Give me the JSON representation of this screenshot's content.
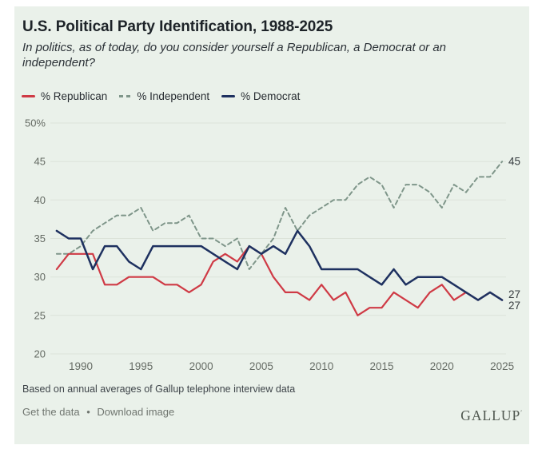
{
  "header": {
    "title": "U.S. Political Party Identification, 1988-2025",
    "subtitle": "In politics, as of today, do you consider yourself a Republican, a Democrat or an independent?"
  },
  "legend": {
    "items": [
      {
        "label": "% Republican",
        "color": "#cf3a45",
        "style": "solid"
      },
      {
        "label": "% Independent",
        "color": "#7f968a",
        "style": "dashed"
      },
      {
        "label": "% Democrat",
        "color": "#1e3160",
        "style": "solid"
      }
    ]
  },
  "chart_data": {
    "type": "line",
    "title": "U.S. Political Party Identification, 1988-2025",
    "x": [
      1988,
      1989,
      1990,
      1991,
      1992,
      1993,
      1994,
      1995,
      1996,
      1997,
      1998,
      1999,
      2000,
      2001,
      2002,
      2003,
      2004,
      2005,
      2006,
      2007,
      2008,
      2009,
      2010,
      2011,
      2012,
      2013,
      2014,
      2015,
      2016,
      2017,
      2018,
      2019,
      2020,
      2021,
      2022,
      2023,
      2024,
      2025
    ],
    "series": [
      {
        "name": "% Republican",
        "slug": "republican",
        "color": "#cf3a45",
        "dash": null,
        "values": [
          31,
          33,
          33,
          33,
          29,
          29,
          30,
          30,
          30,
          29,
          29,
          28,
          29,
          32,
          33,
          32,
          34,
          33,
          30,
          28,
          28,
          27,
          29,
          27,
          28,
          25,
          26,
          26,
          28,
          27,
          26,
          28,
          29,
          27,
          28,
          27,
          28,
          27
        ]
      },
      {
        "name": "% Independent",
        "slug": "independent",
        "color": "#7f968a",
        "dash": [
          5,
          4
        ],
        "values": [
          33,
          33,
          34,
          36,
          37,
          38,
          38,
          39,
          36,
          37,
          37,
          38,
          35,
          35,
          34,
          35,
          31,
          33,
          35,
          39,
          36,
          38,
          39,
          40,
          40,
          42,
          43,
          42,
          39,
          42,
          42,
          41,
          39,
          42,
          41,
          43,
          43,
          45
        ]
      },
      {
        "name": "% Democrat",
        "slug": "democrat",
        "color": "#1e3160",
        "dash": null,
        "values": [
          36,
          35,
          35,
          31,
          34,
          34,
          32,
          31,
          34,
          34,
          34,
          34,
          34,
          33,
          32,
          31,
          34,
          33,
          34,
          33,
          36,
          34,
          31,
          31,
          31,
          31,
          30,
          29,
          31,
          29,
          30,
          30,
          30,
          29,
          28,
          27,
          28,
          27
        ]
      }
    ],
    "ylim": [
      20,
      50
    ],
    "yticks": [
      20,
      25,
      30,
      35,
      40,
      45,
      50
    ],
    "ytick_labels": [
      "20",
      "25",
      "30",
      "35",
      "40",
      "45",
      "50%"
    ],
    "xticks": [
      1990,
      1995,
      2000,
      2005,
      2010,
      2015,
      2020,
      2025
    ],
    "grid": "horizontal",
    "legend_position": "top",
    "end_labels": [
      {
        "text": "45",
        "series": "% Independent"
      },
      {
        "text": "27",
        "series": "% Democrat"
      },
      {
        "text": "27",
        "series": "% Republican"
      }
    ],
    "colors": {
      "background": "#eaf1ea",
      "gridline": "#dce3d9",
      "tick_text": "#666c65",
      "end_label_text": "#373d40"
    }
  },
  "footer": {
    "note": "Based on annual averages of Gallup telephone interview data",
    "links": [
      {
        "label": "Get the data"
      },
      {
        "label": "Download image"
      }
    ],
    "separator": "•",
    "logo": "GALLUP",
    "logo_mark": "′"
  }
}
